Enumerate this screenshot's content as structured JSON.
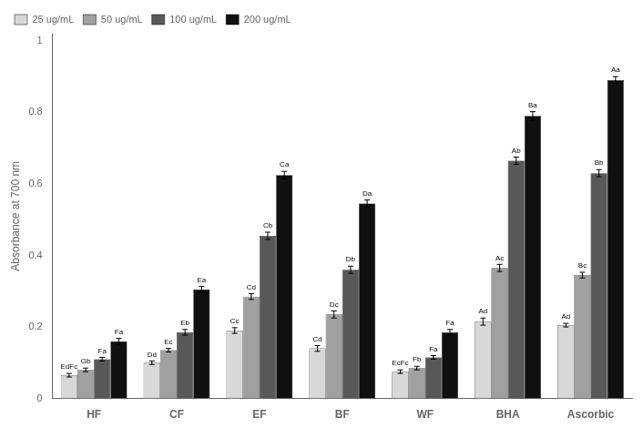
{
  "chart_data": {
    "type": "bar",
    "categories": [
      "HF",
      "CF",
      "EF",
      "BF",
      "WF",
      "BHA",
      "Ascorbic"
    ],
    "series": [
      {
        "name": "25 ug/mL",
        "color": "#d8d8d8",
        "values": [
          0.065,
          0.1,
          0.19,
          0.14,
          0.075,
          0.215,
          0.205
        ],
        "errors": [
          0.005,
          0.005,
          0.008,
          0.008,
          0.005,
          0.01,
          0.005
        ],
        "annotations": [
          "EdFc",
          "Dd",
          "Cc",
          "Cd",
          "EcFc",
          "Ad",
          "Ad"
        ]
      },
      {
        "name": "50 ug/mL",
        "color": "#a0a0a0",
        "values": [
          0.08,
          0.135,
          0.285,
          0.235,
          0.085,
          0.365,
          0.345
        ],
        "errors": [
          0.005,
          0.005,
          0.008,
          0.01,
          0.005,
          0.01,
          0.008
        ],
        "annotations": [
          "Gb",
          "Ec",
          "Cd",
          "Dc",
          "Fb",
          "Ac",
          "Bc"
        ]
      },
      {
        "name": "100 ug/mL",
        "color": "#585858",
        "values": [
          0.11,
          0.185,
          0.455,
          0.36,
          0.115,
          0.665,
          0.63
        ],
        "errors": [
          0.005,
          0.008,
          0.01,
          0.01,
          0.005,
          0.01,
          0.01
        ],
        "annotations": [
          "Fa",
          "Eb",
          "Cb",
          "Db",
          "Fa",
          "Ab",
          "Bb"
        ]
      },
      {
        "name": "200 ug/mL",
        "color": "#101010",
        "values": [
          0.16,
          0.305,
          0.625,
          0.545,
          0.185,
          0.79,
          0.89
        ],
        "errors": [
          0.008,
          0.008,
          0.01,
          0.01,
          0.008,
          0.012,
          0.01
        ],
        "annotations": [
          "Fa",
          "Ea",
          "Ca",
          "Da",
          "Fa",
          "Ba",
          "Aa"
        ]
      }
    ],
    "ylabel": "Absorbance at 700 nm",
    "ylim": [
      0,
      1.02
    ],
    "yticks": [
      0,
      0.2,
      0.4,
      0.6,
      0.8,
      1
    ],
    "grid": false,
    "legend": "upper left"
  }
}
